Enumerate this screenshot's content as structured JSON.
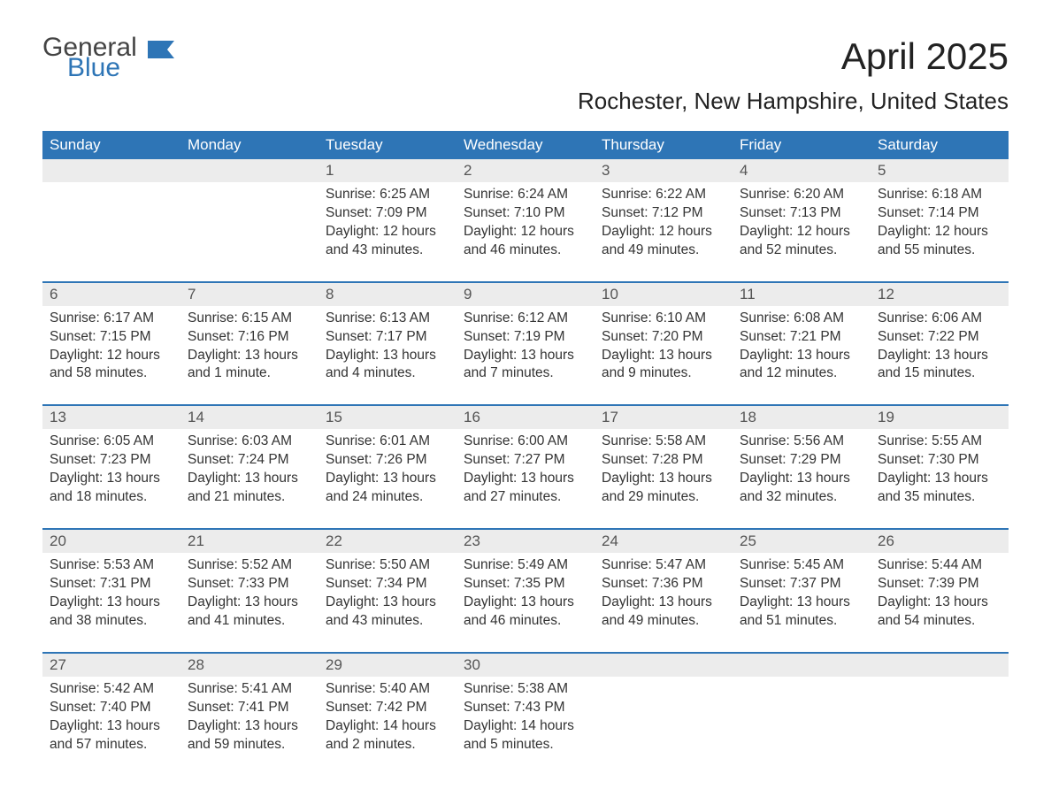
{
  "logo": {
    "text1": "General",
    "text2": "Blue"
  },
  "title": "April 2025",
  "subtitle": "Rochester, New Hampshire, United States",
  "colors": {
    "header_bg": "#2e75b6",
    "header_text": "#ffffff",
    "daynum_bg": "#ececec",
    "week_border": "#2e75b6",
    "body_text": "#333333",
    "page_bg": "#ffffff",
    "logo_accent": "#2e75b6"
  },
  "typography": {
    "title_fontsize": 42,
    "subtitle_fontsize": 26,
    "dow_fontsize": 17,
    "daynum_fontsize": 17,
    "body_fontsize": 15.5,
    "logo_fontsize": 30
  },
  "layout": {
    "columns": 7,
    "rows": 5,
    "first_day_column_index": 2
  },
  "dow": [
    "Sunday",
    "Monday",
    "Tuesday",
    "Wednesday",
    "Thursday",
    "Friday",
    "Saturday"
  ],
  "weeks": [
    [
      {
        "num": "",
        "sunrise": "",
        "sunset": "",
        "daylight1": "",
        "daylight2": ""
      },
      {
        "num": "",
        "sunrise": "",
        "sunset": "",
        "daylight1": "",
        "daylight2": ""
      },
      {
        "num": "1",
        "sunrise": "Sunrise: 6:25 AM",
        "sunset": "Sunset: 7:09 PM",
        "daylight1": "Daylight: 12 hours",
        "daylight2": "and 43 minutes."
      },
      {
        "num": "2",
        "sunrise": "Sunrise: 6:24 AM",
        "sunset": "Sunset: 7:10 PM",
        "daylight1": "Daylight: 12 hours",
        "daylight2": "and 46 minutes."
      },
      {
        "num": "3",
        "sunrise": "Sunrise: 6:22 AM",
        "sunset": "Sunset: 7:12 PM",
        "daylight1": "Daylight: 12 hours",
        "daylight2": "and 49 minutes."
      },
      {
        "num": "4",
        "sunrise": "Sunrise: 6:20 AM",
        "sunset": "Sunset: 7:13 PM",
        "daylight1": "Daylight: 12 hours",
        "daylight2": "and 52 minutes."
      },
      {
        "num": "5",
        "sunrise": "Sunrise: 6:18 AM",
        "sunset": "Sunset: 7:14 PM",
        "daylight1": "Daylight: 12 hours",
        "daylight2": "and 55 minutes."
      }
    ],
    [
      {
        "num": "6",
        "sunrise": "Sunrise: 6:17 AM",
        "sunset": "Sunset: 7:15 PM",
        "daylight1": "Daylight: 12 hours",
        "daylight2": "and 58 minutes."
      },
      {
        "num": "7",
        "sunrise": "Sunrise: 6:15 AM",
        "sunset": "Sunset: 7:16 PM",
        "daylight1": "Daylight: 13 hours",
        "daylight2": "and 1 minute."
      },
      {
        "num": "8",
        "sunrise": "Sunrise: 6:13 AM",
        "sunset": "Sunset: 7:17 PM",
        "daylight1": "Daylight: 13 hours",
        "daylight2": "and 4 minutes."
      },
      {
        "num": "9",
        "sunrise": "Sunrise: 6:12 AM",
        "sunset": "Sunset: 7:19 PM",
        "daylight1": "Daylight: 13 hours",
        "daylight2": "and 7 minutes."
      },
      {
        "num": "10",
        "sunrise": "Sunrise: 6:10 AM",
        "sunset": "Sunset: 7:20 PM",
        "daylight1": "Daylight: 13 hours",
        "daylight2": "and 9 minutes."
      },
      {
        "num": "11",
        "sunrise": "Sunrise: 6:08 AM",
        "sunset": "Sunset: 7:21 PM",
        "daylight1": "Daylight: 13 hours",
        "daylight2": "and 12 minutes."
      },
      {
        "num": "12",
        "sunrise": "Sunrise: 6:06 AM",
        "sunset": "Sunset: 7:22 PM",
        "daylight1": "Daylight: 13 hours",
        "daylight2": "and 15 minutes."
      }
    ],
    [
      {
        "num": "13",
        "sunrise": "Sunrise: 6:05 AM",
        "sunset": "Sunset: 7:23 PM",
        "daylight1": "Daylight: 13 hours",
        "daylight2": "and 18 minutes."
      },
      {
        "num": "14",
        "sunrise": "Sunrise: 6:03 AM",
        "sunset": "Sunset: 7:24 PM",
        "daylight1": "Daylight: 13 hours",
        "daylight2": "and 21 minutes."
      },
      {
        "num": "15",
        "sunrise": "Sunrise: 6:01 AM",
        "sunset": "Sunset: 7:26 PM",
        "daylight1": "Daylight: 13 hours",
        "daylight2": "and 24 minutes."
      },
      {
        "num": "16",
        "sunrise": "Sunrise: 6:00 AM",
        "sunset": "Sunset: 7:27 PM",
        "daylight1": "Daylight: 13 hours",
        "daylight2": "and 27 minutes."
      },
      {
        "num": "17",
        "sunrise": "Sunrise: 5:58 AM",
        "sunset": "Sunset: 7:28 PM",
        "daylight1": "Daylight: 13 hours",
        "daylight2": "and 29 minutes."
      },
      {
        "num": "18",
        "sunrise": "Sunrise: 5:56 AM",
        "sunset": "Sunset: 7:29 PM",
        "daylight1": "Daylight: 13 hours",
        "daylight2": "and 32 minutes."
      },
      {
        "num": "19",
        "sunrise": "Sunrise: 5:55 AM",
        "sunset": "Sunset: 7:30 PM",
        "daylight1": "Daylight: 13 hours",
        "daylight2": "and 35 minutes."
      }
    ],
    [
      {
        "num": "20",
        "sunrise": "Sunrise: 5:53 AM",
        "sunset": "Sunset: 7:31 PM",
        "daylight1": "Daylight: 13 hours",
        "daylight2": "and 38 minutes."
      },
      {
        "num": "21",
        "sunrise": "Sunrise: 5:52 AM",
        "sunset": "Sunset: 7:33 PM",
        "daylight1": "Daylight: 13 hours",
        "daylight2": "and 41 minutes."
      },
      {
        "num": "22",
        "sunrise": "Sunrise: 5:50 AM",
        "sunset": "Sunset: 7:34 PM",
        "daylight1": "Daylight: 13 hours",
        "daylight2": "and 43 minutes."
      },
      {
        "num": "23",
        "sunrise": "Sunrise: 5:49 AM",
        "sunset": "Sunset: 7:35 PM",
        "daylight1": "Daylight: 13 hours",
        "daylight2": "and 46 minutes."
      },
      {
        "num": "24",
        "sunrise": "Sunrise: 5:47 AM",
        "sunset": "Sunset: 7:36 PM",
        "daylight1": "Daylight: 13 hours",
        "daylight2": "and 49 minutes."
      },
      {
        "num": "25",
        "sunrise": "Sunrise: 5:45 AM",
        "sunset": "Sunset: 7:37 PM",
        "daylight1": "Daylight: 13 hours",
        "daylight2": "and 51 minutes."
      },
      {
        "num": "26",
        "sunrise": "Sunrise: 5:44 AM",
        "sunset": "Sunset: 7:39 PM",
        "daylight1": "Daylight: 13 hours",
        "daylight2": "and 54 minutes."
      }
    ],
    [
      {
        "num": "27",
        "sunrise": "Sunrise: 5:42 AM",
        "sunset": "Sunset: 7:40 PM",
        "daylight1": "Daylight: 13 hours",
        "daylight2": "and 57 minutes."
      },
      {
        "num": "28",
        "sunrise": "Sunrise: 5:41 AM",
        "sunset": "Sunset: 7:41 PM",
        "daylight1": "Daylight: 13 hours",
        "daylight2": "and 59 minutes."
      },
      {
        "num": "29",
        "sunrise": "Sunrise: 5:40 AM",
        "sunset": "Sunset: 7:42 PM",
        "daylight1": "Daylight: 14 hours",
        "daylight2": "and 2 minutes."
      },
      {
        "num": "30",
        "sunrise": "Sunrise: 5:38 AM",
        "sunset": "Sunset: 7:43 PM",
        "daylight1": "Daylight: 14 hours",
        "daylight2": "and 5 minutes."
      },
      {
        "num": "",
        "sunrise": "",
        "sunset": "",
        "daylight1": "",
        "daylight2": ""
      },
      {
        "num": "",
        "sunrise": "",
        "sunset": "",
        "daylight1": "",
        "daylight2": ""
      },
      {
        "num": "",
        "sunrise": "",
        "sunset": "",
        "daylight1": "",
        "daylight2": ""
      }
    ]
  ]
}
